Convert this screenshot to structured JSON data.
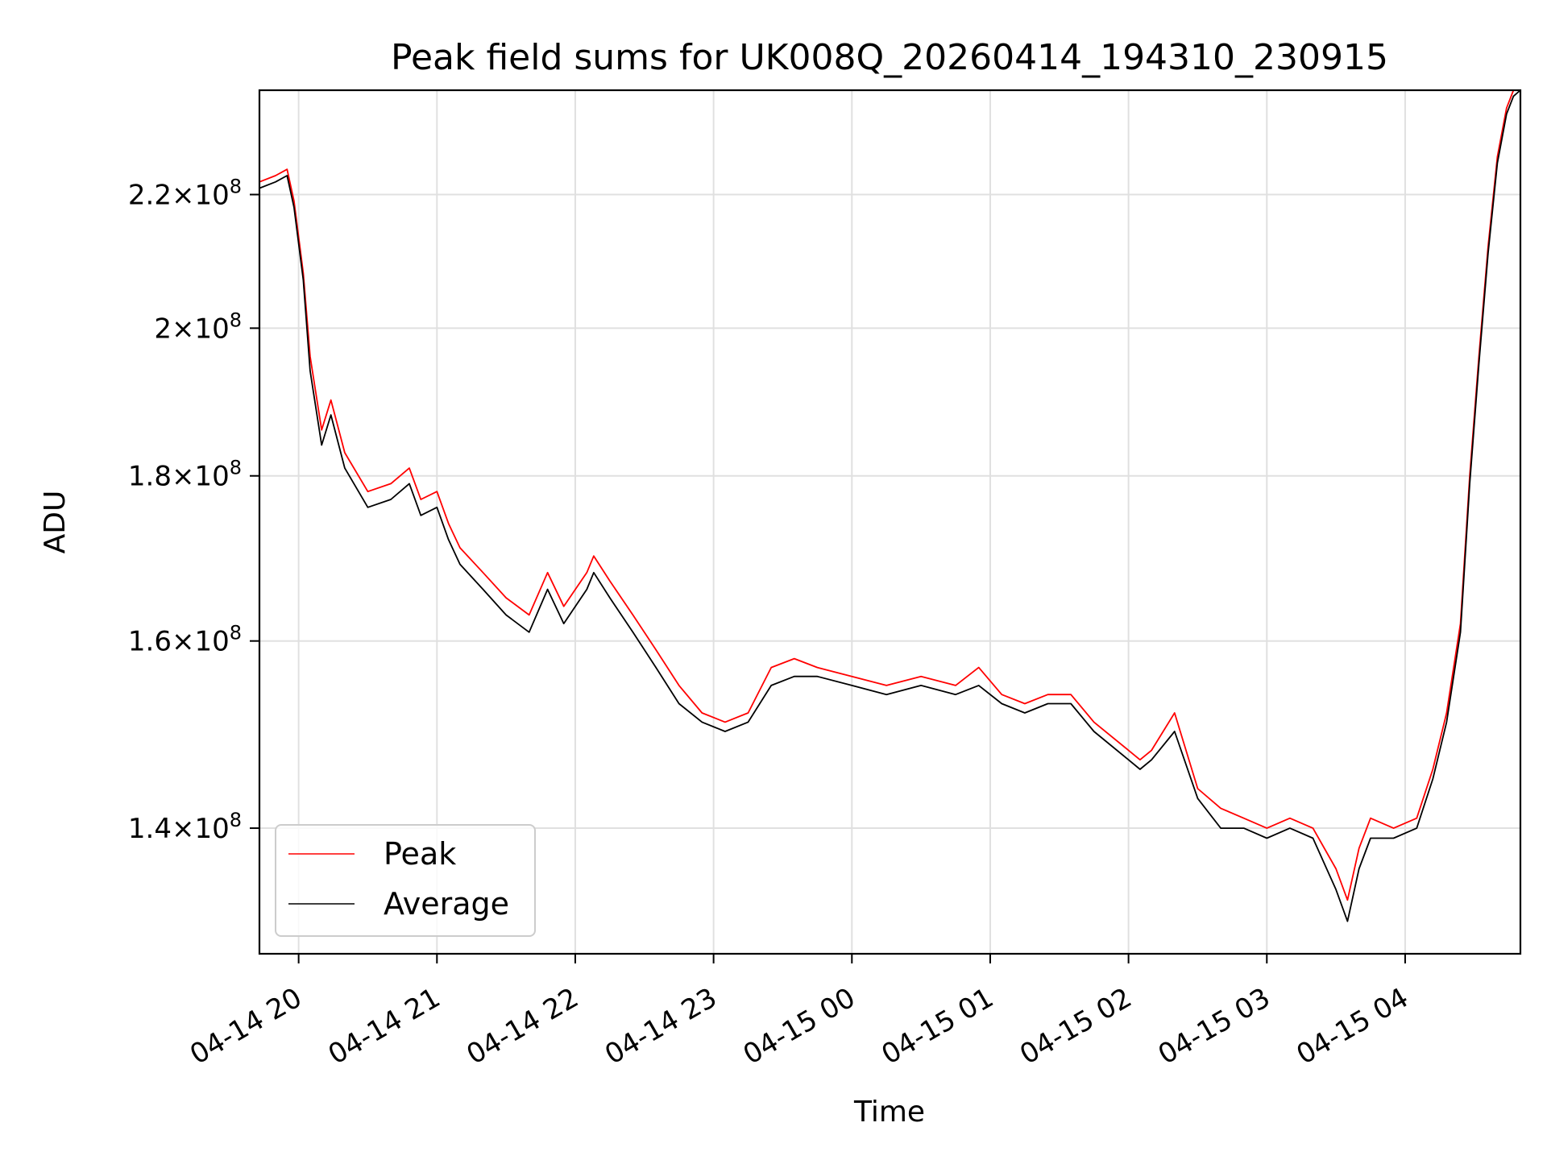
{
  "chart_data": {
    "type": "line",
    "title": "Peak field sums for UK008Q_20260414_194310_230915",
    "xlabel": "Time",
    "ylabel": "ADU",
    "y_scale": "log",
    "grid": true,
    "legend_position": "lower-left",
    "xlim": [
      "2026-04-14 19:43",
      "2026-04-15 04:50"
    ],
    "ylim": [
      128000000,
      237000000
    ],
    "x_ticks": [
      {
        "t": "2026-04-14 20:00",
        "label": "04-14 20"
      },
      {
        "t": "2026-04-14 21:00",
        "label": "04-14 21"
      },
      {
        "t": "2026-04-14 22:00",
        "label": "04-14 22"
      },
      {
        "t": "2026-04-14 23:00",
        "label": "04-14 23"
      },
      {
        "t": "2026-04-15 00:00",
        "label": "04-15 00"
      },
      {
        "t": "2026-04-15 01:00",
        "label": "04-15 01"
      },
      {
        "t": "2026-04-15 02:00",
        "label": "04-15 02"
      },
      {
        "t": "2026-04-15 03:00",
        "label": "04-15 03"
      },
      {
        "t": "2026-04-15 04:00",
        "label": "04-15 04"
      }
    ],
    "y_ticks": [
      {
        "v": 140000000,
        "mant": "1.4",
        "exp": "8"
      },
      {
        "v": 160000000,
        "mant": "1.6",
        "exp": "8"
      },
      {
        "v": 180000000,
        "mant": "1.8",
        "exp": "8"
      },
      {
        "v": 200000000,
        "mant": "2",
        "exp": "8"
      },
      {
        "v": 220000000,
        "mant": "2.2",
        "exp": "8"
      }
    ],
    "series": [
      {
        "name": "Peak",
        "color": "#ff0000",
        "x": [
          "2026-04-14 19:43",
          "2026-04-14 19:50",
          "2026-04-14 19:55",
          "2026-04-14 19:58",
          "2026-04-14 20:02",
          "2026-04-14 20:05",
          "2026-04-14 20:10",
          "2026-04-14 20:14",
          "2026-04-14 20:20",
          "2026-04-14 20:30",
          "2026-04-14 20:40",
          "2026-04-14 20:48",
          "2026-04-14 20:53",
          "2026-04-14 21:00",
          "2026-04-14 21:05",
          "2026-04-14 21:10",
          "2026-04-14 21:20",
          "2026-04-14 21:30",
          "2026-04-14 21:40",
          "2026-04-14 21:48",
          "2026-04-14 21:55",
          "2026-04-14 22:05",
          "2026-04-14 22:08",
          "2026-04-14 22:15",
          "2026-04-14 22:25",
          "2026-04-14 22:35",
          "2026-04-14 22:45",
          "2026-04-14 22:55",
          "2026-04-14 23:05",
          "2026-04-14 23:15",
          "2026-04-14 23:25",
          "2026-04-14 23:35",
          "2026-04-14 23:45",
          "2026-04-15 00:00",
          "2026-04-15 00:15",
          "2026-04-15 00:30",
          "2026-04-15 00:45",
          "2026-04-15 00:55",
          "2026-04-15 01:05",
          "2026-04-15 01:15",
          "2026-04-15 01:25",
          "2026-04-15 01:35",
          "2026-04-15 01:45",
          "2026-04-15 02:00",
          "2026-04-15 02:05",
          "2026-04-15 02:10",
          "2026-04-15 02:20",
          "2026-04-15 02:30",
          "2026-04-15 02:40",
          "2026-04-15 02:50",
          "2026-04-15 03:00",
          "2026-04-15 03:10",
          "2026-04-15 03:20",
          "2026-04-15 03:30",
          "2026-04-15 03:35",
          "2026-04-15 03:40",
          "2026-04-15 03:45",
          "2026-04-15 03:55",
          "2026-04-15 04:05",
          "2026-04-15 04:12",
          "2026-04-15 04:18",
          "2026-04-15 04:24",
          "2026-04-15 04:28",
          "2026-04-15 04:32",
          "2026-04-15 04:36",
          "2026-04-15 04:40",
          "2026-04-15 04:44",
          "2026-04-15 04:47",
          "2026-04-15 04:50"
        ],
        "y": [
          222000000,
          223000000,
          224000000,
          219000000,
          208000000,
          196000000,
          186000000,
          190000000,
          183000000,
          178000000,
          179000000,
          181000000,
          177000000,
          178000000,
          174000000,
          171000000,
          168000000,
          165000000,
          163000000,
          168000000,
          164000000,
          168000000,
          170000000,
          167000000,
          163000000,
          159000000,
          155000000,
          152000000,
          151000000,
          152000000,
          157000000,
          158000000,
          157000000,
          156000000,
          155000000,
          156000000,
          155000000,
          157000000,
          154000000,
          153000000,
          154000000,
          154000000,
          151000000,
          148000000,
          147000000,
          148000000,
          152000000,
          144000000,
          142000000,
          141000000,
          140000000,
          141000000,
          140000000,
          136000000,
          133000000,
          138000000,
          141000000,
          140000000,
          141000000,
          146000000,
          152000000,
          162000000,
          180000000,
          196000000,
          212000000,
          226000000,
          234000000,
          237000000,
          237000000
        ]
      },
      {
        "name": "Average",
        "color": "#000000",
        "x": [
          "2026-04-14 19:43",
          "2026-04-14 19:50",
          "2026-04-14 19:55",
          "2026-04-14 19:58",
          "2026-04-14 20:02",
          "2026-04-14 20:05",
          "2026-04-14 20:10",
          "2026-04-14 20:14",
          "2026-04-14 20:20",
          "2026-04-14 20:30",
          "2026-04-14 20:40",
          "2026-04-14 20:48",
          "2026-04-14 20:53",
          "2026-04-14 21:00",
          "2026-04-14 21:05",
          "2026-04-14 21:10",
          "2026-04-14 21:20",
          "2026-04-14 21:30",
          "2026-04-14 21:40",
          "2026-04-14 21:48",
          "2026-04-14 21:55",
          "2026-04-14 22:05",
          "2026-04-14 22:08",
          "2026-04-14 22:15",
          "2026-04-14 22:25",
          "2026-04-14 22:35",
          "2026-04-14 22:45",
          "2026-04-14 22:55",
          "2026-04-14 23:05",
          "2026-04-14 23:15",
          "2026-04-14 23:25",
          "2026-04-14 23:35",
          "2026-04-14 23:45",
          "2026-04-15 00:00",
          "2026-04-15 00:15",
          "2026-04-15 00:30",
          "2026-04-15 00:45",
          "2026-04-15 00:55",
          "2026-04-15 01:05",
          "2026-04-15 01:15",
          "2026-04-15 01:25",
          "2026-04-15 01:35",
          "2026-04-15 01:45",
          "2026-04-15 02:00",
          "2026-04-15 02:05",
          "2026-04-15 02:10",
          "2026-04-15 02:20",
          "2026-04-15 02:30",
          "2026-04-15 02:40",
          "2026-04-15 02:50",
          "2026-04-15 03:00",
          "2026-04-15 03:10",
          "2026-04-15 03:20",
          "2026-04-15 03:30",
          "2026-04-15 03:35",
          "2026-04-15 03:40",
          "2026-04-15 03:45",
          "2026-04-15 03:55",
          "2026-04-15 04:05",
          "2026-04-15 04:12",
          "2026-04-15 04:18",
          "2026-04-15 04:24",
          "2026-04-15 04:28",
          "2026-04-15 04:32",
          "2026-04-15 04:36",
          "2026-04-15 04:40",
          "2026-04-15 04:44",
          "2026-04-15 04:47",
          "2026-04-15 04:50"
        ],
        "y": [
          221000000,
          222000000,
          223000000,
          218000000,
          207000000,
          194000000,
          184000000,
          188000000,
          181000000,
          176000000,
          177000000,
          179000000,
          175000000,
          176000000,
          172000000,
          169000000,
          166000000,
          163000000,
          161000000,
          166000000,
          162000000,
          166000000,
          168000000,
          165000000,
          161000000,
          157000000,
          153000000,
          151000000,
          150000000,
          151000000,
          155000000,
          156000000,
          156000000,
          155000000,
          154000000,
          155000000,
          154000000,
          155000000,
          153000000,
          152000000,
          153000000,
          153000000,
          150000000,
          147000000,
          146000000,
          147000000,
          150000000,
          143000000,
          140000000,
          140000000,
          139000000,
          140000000,
          139000000,
          134000000,
          131000000,
          136000000,
          139000000,
          139000000,
          140000000,
          145000000,
          151000000,
          161000000,
          179000000,
          195000000,
          211000000,
          225000000,
          233000000,
          236000000,
          237000000
        ]
      }
    ]
  }
}
